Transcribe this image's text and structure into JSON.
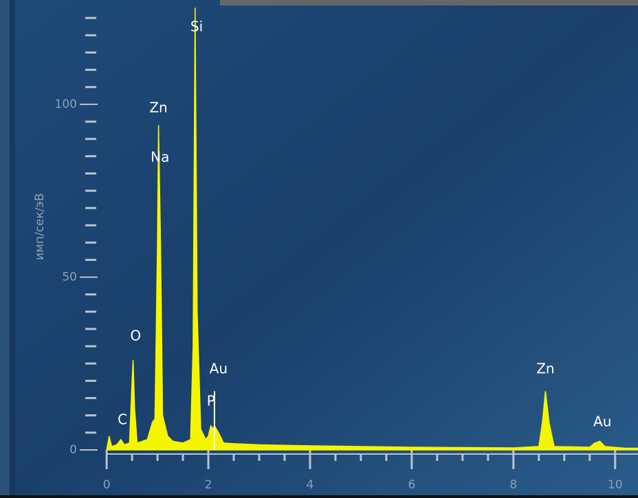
{
  "chart_data": {
    "type": "area",
    "y_label": "имп/сек/эВ",
    "x": [
      0,
      0.05,
      0.1,
      0.2,
      0.28,
      0.35,
      0.45,
      0.5,
      0.52,
      0.55,
      0.6,
      0.7,
      0.8,
      0.9,
      0.95,
      1.0,
      1.02,
      1.06,
      1.1,
      1.2,
      1.3,
      1.5,
      1.65,
      1.7,
      1.74,
      1.78,
      1.85,
      1.95,
      2.0,
      2.05,
      2.1,
      2.12,
      2.2,
      2.3,
      2.5,
      3,
      4,
      5,
      6,
      7,
      8,
      8.5,
      8.57,
      8.63,
      8.7,
      8.8,
      9.5,
      9.6,
      9.7,
      9.8,
      10.2,
      10.45
    ],
    "values": [
      0,
      4,
      1,
      1.5,
      3,
      1.5,
      2,
      20,
      26,
      12,
      2,
      2.5,
      3,
      8,
      9,
      60,
      94,
      60,
      10,
      4,
      2.5,
      2,
      3,
      30,
      128,
      40,
      6,
      3,
      4,
      7,
      6,
      7,
      5,
      2,
      1.8,
      1.5,
      1.2,
      1,
      0.8,
      0.7,
      0.6,
      1,
      8,
      17,
      8,
      1,
      0.8,
      2,
      2.5,
      1,
      0.5,
      0.5
    ],
    "color": "#f5f500",
    "xlim": [
      -1.8,
      10.45
    ],
    "ylim": [
      0,
      130
    ],
    "xticks": [
      0,
      2,
      4,
      6,
      8,
      10
    ],
    "xminorticks": [
      0.5,
      1,
      1.5,
      2.5,
      3,
      3.5,
      4.5,
      5,
      5.5,
      6.5,
      7,
      7.5,
      8.5,
      9,
      9.5
    ],
    "yticks": [
      0,
      50,
      100
    ],
    "yminorticks": [
      5,
      10,
      15,
      20,
      25,
      30,
      35,
      40,
      45,
      55,
      60,
      65,
      70,
      75,
      80,
      85,
      90,
      95,
      105,
      110,
      115,
      120,
      125
    ],
    "annotations": [
      {
        "text": "Si",
        "x": 1.77
      },
      {
        "text": "Zn",
        "x": 1.02
      },
      {
        "text": "Na",
        "x": 1.05
      },
      {
        "text": "O",
        "x": 0.57
      },
      {
        "text": "C",
        "x": 0.31
      },
      {
        "text": "Au",
        "x": 2.2
      },
      {
        "text": "P",
        "x": 2.05
      },
      {
        "text": "Zn",
        "x": 8.63
      },
      {
        "text": "Au",
        "x": 9.75
      }
    ],
    "marker_line": {
      "x": 2.12,
      "y": 17
    }
  }
}
